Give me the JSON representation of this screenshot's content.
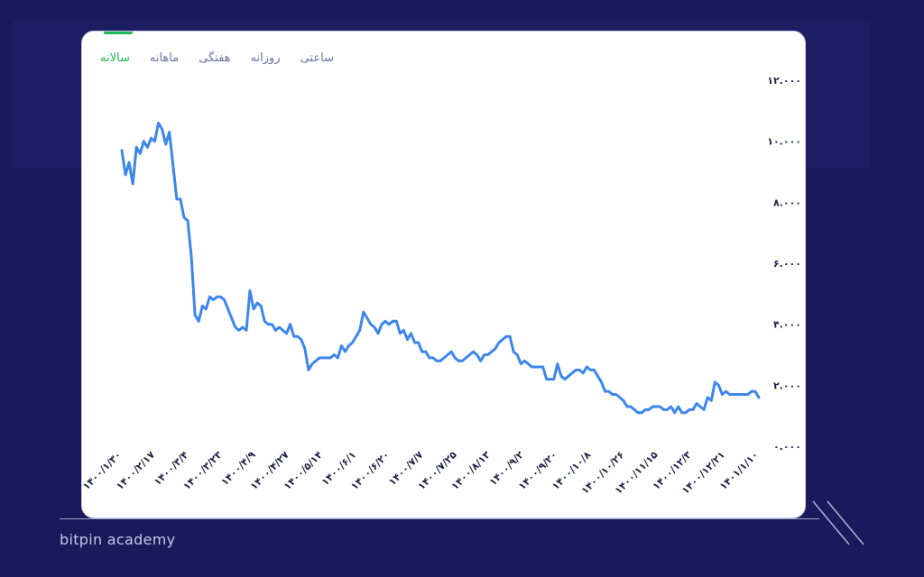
{
  "tabs": [
    {
      "label": "ساعتی",
      "active": false
    },
    {
      "label": "روزانه",
      "active": false
    },
    {
      "label": "هفتگی",
      "active": false
    },
    {
      "label": "ماهانه",
      "active": false
    },
    {
      "label": "سالانه",
      "active": true
    }
  ],
  "brand": "bitpin academy",
  "colors": {
    "background": "#191a5c",
    "card": "#ffffff",
    "line": "#3d86ee",
    "active_tab": "#1db954",
    "tab_text": "#6e72a3"
  },
  "chart_data": {
    "type": "line",
    "title": "",
    "xlabel": "",
    "ylabel": "",
    "ylim": [
      0,
      12000
    ],
    "y_axis_side": "right",
    "y_ticks": [
      0,
      2000,
      4000,
      6000,
      8000,
      10000,
      12000
    ],
    "y_tick_labels": [
      "۰.۰۰۰",
      "۲.۰۰۰",
      "۴.۰۰۰",
      "۶.۰۰۰",
      "۸.۰۰۰",
      "۱۰.۰۰۰",
      "۱۲.۰۰۰"
    ],
    "x_tick_labels": [
      "۱۴۰۰/۱/۳۰",
      "۱۴۰۰/۲/۱۷",
      "۱۴۰۰/۳/۴",
      "۱۴۰۰/۳/۲۳",
      "۱۴۰۰/۴/۹",
      "۱۴۰۰/۴/۲۷",
      "۱۴۰۰/۵/۱۴",
      "۱۴۰۰/۶/۱",
      "۱۴۰۰/۶/۲۰",
      "۱۴۰۰/۷/۷",
      "۱۴۰۰/۷/۲۵",
      "۱۴۰۰/۸/۱۳",
      "۱۴۰۰/۹/۲",
      "۱۴۰۰/۹/۲۰",
      "۱۴۰۰/۱۰/۸",
      "۱۴۰۰/۱۰/۲۶",
      "۱۴۰۰/۱۱/۱۵",
      "۱۴۰۰/۱۲/۳",
      "۱۴۰۰/۱۲/۲۱",
      "۱۴۰۱/۱/۱۰"
    ],
    "grid": false,
    "legend": "none",
    "series": [
      {
        "values": [
          9700,
          8900,
          9300,
          8600,
          9800,
          9600,
          10000,
          9800,
          10100,
          10000,
          10600,
          10400,
          9900,
          10300,
          9200,
          8100,
          8100,
          7500,
          7400,
          6200,
          4300,
          4100,
          4600,
          4500,
          4900,
          4800,
          4900,
          4900,
          4800,
          4500,
          4200,
          3900,
          3800,
          3900,
          3800,
          5100,
          4500,
          4700,
          4600,
          4100,
          4000,
          4000,
          3800,
          3900,
          3800,
          3700,
          4000,
          3600,
          3600,
          3500,
          3200,
          2500,
          2700,
          2800,
          2900,
          2900,
          2900,
          2900,
          3000,
          2900,
          3300,
          3100,
          3300,
          3400,
          3600,
          3800,
          4400,
          4200,
          4000,
          3900,
          3700,
          4000,
          4100,
          4000,
          4100,
          4100,
          3700,
          3800,
          3500,
          3700,
          3400,
          3400,
          3100,
          3100,
          2900,
          2900,
          2800,
          2800,
          2900,
          3000,
          3100,
          2900,
          2800,
          2800,
          2900,
          3000,
          3100,
          3000,
          2800,
          3000,
          3000,
          3100,
          3200,
          3400,
          3500,
          3600,
          3600,
          3100,
          3000,
          2700,
          2800,
          2700,
          2600,
          2600,
          2600,
          2600,
          2200,
          2200,
          2200,
          2700,
          2300,
          2200,
          2300,
          2400,
          2500,
          2500,
          2400,
          2600,
          2500,
          2500,
          2300,
          2100,
          1800,
          1800,
          1700,
          1700,
          1600,
          1500,
          1300,
          1300,
          1200,
          1100,
          1100,
          1200,
          1200,
          1300,
          1300,
          1300,
          1200,
          1200,
          1300,
          1100,
          1300,
          1100,
          1100,
          1200,
          1200,
          1400,
          1300,
          1200,
          1600,
          1500,
          2100,
          2000,
          1700,
          1800,
          1700,
          1700,
          1700,
          1700,
          1700,
          1700,
          1800,
          1800,
          1600
        ]
      }
    ]
  }
}
